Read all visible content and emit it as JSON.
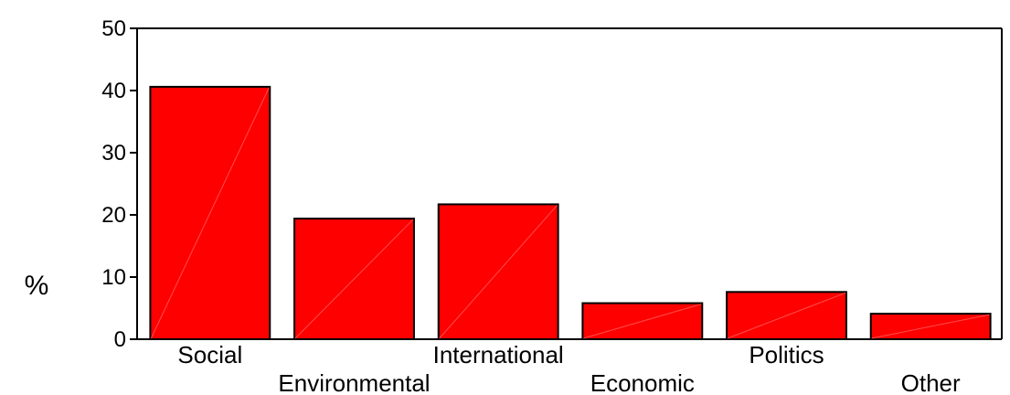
{
  "chart_data": {
    "type": "bar",
    "categories": [
      "Social",
      "Environmental",
      "International",
      "Economic",
      "Politics",
      "Other"
    ],
    "values": [
      40.6,
      19.4,
      21.7,
      5.8,
      7.6,
      4.1
    ],
    "title": "",
    "xlabel": "",
    "ylabel": "%",
    "ylim": [
      0,
      50
    ],
    "yticks": [
      "0",
      "10",
      "20",
      "30",
      "40",
      "50"
    ],
    "grid": false,
    "legend": "none",
    "bar_color": "#ff0000",
    "bar_edge_color": "#000000"
  }
}
